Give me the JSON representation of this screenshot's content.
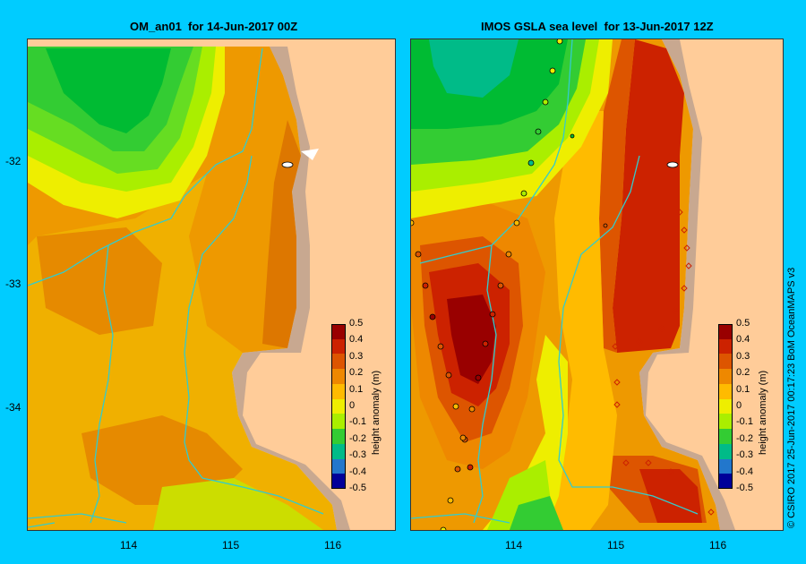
{
  "panels": [
    {
      "title": "OM_an01  for 14-Jun-2017 00Z"
    },
    {
      "title": "IMOS GSLA sea level  for 13-Jun-2017 12Z"
    }
  ],
  "axes": {
    "y_ticks": [
      "-32",
      "-33",
      "-34"
    ],
    "x_ticks": [
      "114",
      "115",
      "116"
    ]
  },
  "colorbar": {
    "title": "height anomaly (m)",
    "ticks": [
      "0.5",
      "0.4",
      "0.3",
      "0.2",
      "0.1",
      "0",
      "-0.1",
      "-0.2",
      "-0.3",
      "-0.4",
      "-0.5"
    ],
    "colors": [
      "#990000",
      "#cc2200",
      "#dd5500",
      "#ee8800",
      "#ffbb00",
      "#eeee00",
      "#aaee00",
      "#33cc33",
      "#00bb88",
      "#2277cc",
      "#000099"
    ]
  },
  "credit": "© CSIRO 2017   25-Jun-2017 00:17:23 BoM OceanMAPS v3",
  "palette": {
    "background": "#00ccff",
    "land": "#ffcc99",
    "shelf": "#c8a890",
    "bathy": "#33cccc"
  }
}
